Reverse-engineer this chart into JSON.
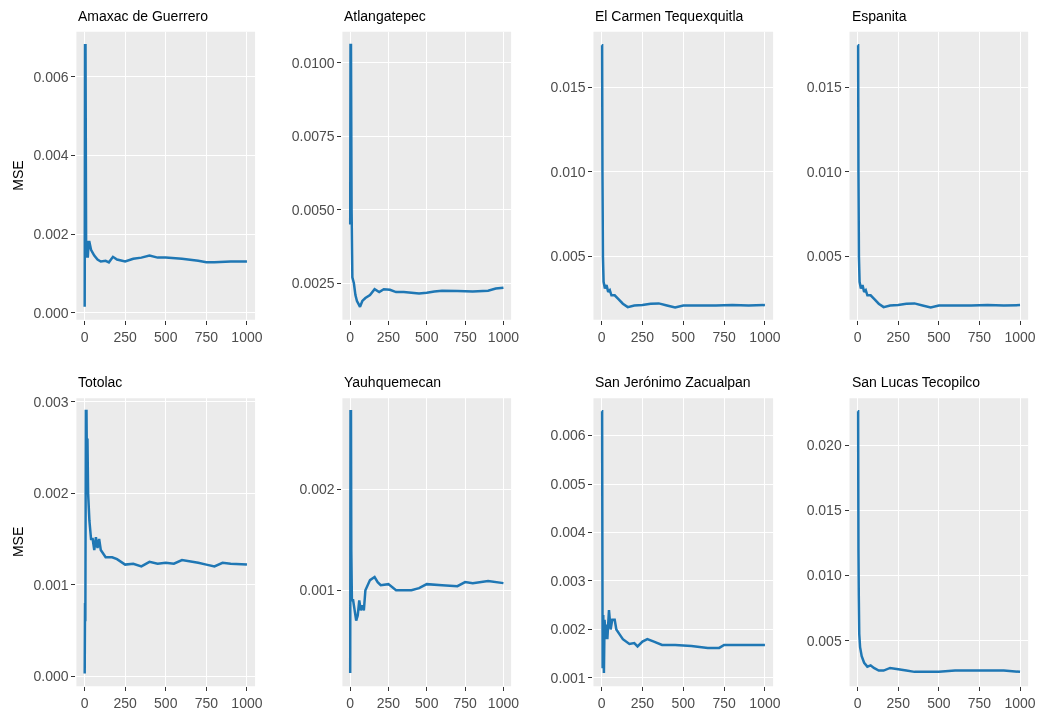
{
  "chart_data": [
    {
      "type": "line",
      "title": "Amaxac de Guerrero",
      "ylabel": "MSE",
      "grid": true,
      "xlim": [
        -50,
        1050
      ],
      "xticks": [
        0,
        250,
        500,
        750,
        1000
      ],
      "ylim": [
        -0.00018,
        0.00714
      ],
      "yticks": [
        {
          "value": 0,
          "label": "0.000"
        },
        {
          "value": 0.002,
          "label": "0.002"
        },
        {
          "value": 0.004,
          "label": "0.004"
        },
        {
          "value": 0.006,
          "label": "0.006"
        }
      ],
      "series": [
        {
          "color": "#1f77b4",
          "x": [
            1,
            3,
            6,
            10,
            15,
            20,
            25,
            30,
            40,
            60,
            80,
            100,
            130,
            150,
            175,
            200,
            250,
            300,
            350,
            400,
            450,
            500,
            600,
            700,
            750,
            800,
            900,
            1000
          ],
          "values": [
            0.00015,
            0.0068,
            0.0068,
            0.0014,
            0.0017,
            0.0014,
            0.0018,
            0.0018,
            0.0016,
            0.00145,
            0.00135,
            0.0013,
            0.00132,
            0.00128,
            0.00142,
            0.00135,
            0.0013,
            0.00137,
            0.0014,
            0.00145,
            0.0014,
            0.0014,
            0.00137,
            0.00132,
            0.00128,
            0.00128,
            0.0013,
            0.0013
          ]
        }
      ]
    },
    {
      "type": "line",
      "title": "Atlangatepec",
      "grid": true,
      "xlim": [
        -50,
        1050
      ],
      "xticks": [
        0,
        250,
        500,
        750,
        1000
      ],
      "ylim": [
        0.00126,
        0.01105
      ],
      "yticks": [
        {
          "value": 0.0025,
          "label": "0.0025"
        },
        {
          "value": 0.005,
          "label": "0.0050"
        },
        {
          "value": 0.0075,
          "label": "0.0075"
        },
        {
          "value": 0.01,
          "label": "0.0100"
        }
      ],
      "series": [
        {
          "color": "#1f77b4",
          "x": [
            1,
            3,
            6,
            10,
            15,
            25,
            35,
            45,
            55,
            65,
            80,
            100,
            130,
            160,
            190,
            220,
            260,
            300,
            350,
            400,
            450,
            500,
            550,
            600,
            700,
            800,
            900,
            950,
            1000
          ],
          "values": [
            0.0045,
            0.0106,
            0.0106,
            0.005,
            0.0027,
            0.0025,
            0.0021,
            0.0019,
            0.0018,
            0.0017,
            0.0019,
            0.002,
            0.0021,
            0.0023,
            0.0022,
            0.0023,
            0.00228,
            0.0022,
            0.0022,
            0.00218,
            0.00215,
            0.00218,
            0.00222,
            0.00225,
            0.00224,
            0.00222,
            0.00225,
            0.00232,
            0.00235
          ]
        }
      ]
    },
    {
      "type": "line",
      "title": "El Carmen Tequexquitla",
      "grid": true,
      "xlim": [
        -50,
        1050
      ],
      "xticks": [
        0,
        250,
        500,
        750,
        1000
      ],
      "ylim": [
        0.00125,
        0.0183
      ],
      "yticks": [
        {
          "value": 0.005,
          "label": "0.005"
        },
        {
          "value": 0.01,
          "label": "0.010"
        },
        {
          "value": 0.015,
          "label": "0.015"
        }
      ],
      "series": [
        {
          "color": "#1f77b4",
          "x": [
            1,
            3,
            5,
            8,
            12,
            20,
            30,
            40,
            50,
            60,
            80,
            100,
            130,
            160,
            200,
            250,
            300,
            350,
            400,
            450,
            500,
            600,
            700,
            800,
            900,
            1000
          ],
          "values": [
            0.0175,
            0.0175,
            0.01,
            0.005,
            0.0035,
            0.0031,
            0.0033,
            0.0029,
            0.003,
            0.0027,
            0.0027,
            0.0025,
            0.0022,
            0.002,
            0.0021,
            0.00212,
            0.0022,
            0.00222,
            0.0021,
            0.00198,
            0.0021,
            0.0021,
            0.0021,
            0.00212,
            0.0021,
            0.00212
          ]
        }
      ]
    },
    {
      "type": "line",
      "title": "Espanita",
      "grid": true,
      "xlim": [
        -50,
        1050
      ],
      "xticks": [
        0,
        250,
        500,
        750,
        1000
      ],
      "ylim": [
        0.00125,
        0.0183
      ],
      "yticks": [
        {
          "value": 0.005,
          "label": "0.005"
        },
        {
          "value": 0.01,
          "label": "0.010"
        },
        {
          "value": 0.015,
          "label": "0.015"
        }
      ],
      "series": [
        {
          "color": "#1f77b4",
          "x": [
            1,
            3,
            5,
            8,
            12,
            20,
            30,
            40,
            50,
            60,
            80,
            100,
            130,
            160,
            200,
            250,
            300,
            350,
            400,
            450,
            500,
            600,
            700,
            800,
            900,
            1000
          ],
          "values": [
            0.0175,
            0.0175,
            0.01,
            0.005,
            0.0035,
            0.0031,
            0.0033,
            0.0029,
            0.003,
            0.0027,
            0.0027,
            0.0025,
            0.0022,
            0.002,
            0.0021,
            0.00212,
            0.0022,
            0.00222,
            0.0021,
            0.00198,
            0.0021,
            0.0021,
            0.0021,
            0.00212,
            0.0021,
            0.00212
          ]
        }
      ]
    },
    {
      "type": "line",
      "title": "Totolac",
      "ylabel": "MSE",
      "grid": true,
      "xlim": [
        -50,
        1050
      ],
      "xticks": [
        0,
        250,
        500,
        750,
        1000
      ],
      "ylim": [
        -0.00011,
        0.00304
      ],
      "yticks": [
        {
          "value": 0,
          "label": "0.000"
        },
        {
          "value": 0.001,
          "label": "0.001"
        },
        {
          "value": 0.002,
          "label": "0.002"
        },
        {
          "value": 0.003,
          "label": "0.003"
        }
      ],
      "series": [
        {
          "color": "#1f77b4",
          "x": [
            1,
            3,
            5,
            8,
            12,
            15,
            18,
            22,
            30,
            40,
            50,
            60,
            70,
            80,
            90,
            100,
            130,
            170,
            200,
            250,
            300,
            350,
            400,
            450,
            500,
            550,
            600,
            700,
            750,
            800,
            850,
            900,
            1000
          ],
          "values": [
            3e-05,
            0.0008,
            0.0006,
            0.0029,
            0.0029,
            0.0022,
            0.0026,
            0.002,
            0.0017,
            0.0015,
            0.0015,
            0.00138,
            0.00152,
            0.0014,
            0.0015,
            0.00138,
            0.0013,
            0.0013,
            0.00128,
            0.00122,
            0.00123,
            0.0012,
            0.00125,
            0.00123,
            0.00124,
            0.00123,
            0.00127,
            0.00124,
            0.00122,
            0.0012,
            0.00124,
            0.00123,
            0.00122
          ]
        }
      ]
    },
    {
      "type": "line",
      "title": "Yauhquemecan",
      "grid": true,
      "xlim": [
        -50,
        1050
      ],
      "xticks": [
        0,
        250,
        500,
        750,
        1000
      ],
      "ylim": [
        5e-05,
        0.0029
      ],
      "yticks": [
        {
          "value": 0.001,
          "label": "0.001"
        },
        {
          "value": 0.002,
          "label": "0.002"
        }
      ],
      "series": [
        {
          "color": "#1f77b4",
          "x": [
            1,
            3,
            6,
            8,
            12,
            20,
            30,
            40,
            50,
            60,
            70,
            80,
            90,
            100,
            130,
            160,
            180,
            200,
            250,
            300,
            400,
            450,
            500,
            600,
            700,
            750,
            800,
            900,
            1000
          ],
          "values": [
            0.00018,
            0.00277,
            0.00277,
            0.0014,
            0.0009,
            0.0009,
            0.0008,
            0.0007,
            0.00075,
            0.0009,
            0.0008,
            0.00085,
            0.0008,
            0.001,
            0.0011,
            0.00113,
            0.00108,
            0.00105,
            0.00106,
            0.001,
            0.001,
            0.00102,
            0.00106,
            0.00105,
            0.00104,
            0.00108,
            0.00107,
            0.00109,
            0.00107
          ]
        }
      ]
    },
    {
      "type": "line",
      "title": "San Jerónimo Zacualpan",
      "grid": true,
      "xlim": [
        -50,
        1050
      ],
      "xticks": [
        0,
        250,
        500,
        750,
        1000
      ],
      "ylim": [
        0.00083,
        0.00677
      ],
      "yticks": [
        {
          "value": 0.001,
          "label": "0.001"
        },
        {
          "value": 0.002,
          "label": "0.002"
        },
        {
          "value": 0.003,
          "label": "0.003"
        },
        {
          "value": 0.004,
          "label": "0.004"
        },
        {
          "value": 0.005,
          "label": "0.005"
        },
        {
          "value": 0.006,
          "label": "0.006"
        }
      ],
      "series": [
        {
          "color": "#1f77b4",
          "x": [
            1,
            3,
            6,
            10,
            14,
            18,
            25,
            30,
            35,
            45,
            55,
            65,
            80,
            90,
            110,
            130,
            170,
            200,
            220,
            250,
            280,
            320,
            370,
            450,
            550,
            650,
            720,
            750,
            850,
            900,
            1000
          ],
          "values": [
            0.0065,
            0.0065,
            0.0012,
            0.0023,
            0.0011,
            0.0022,
            0.0018,
            0.0021,
            0.0018,
            0.0024,
            0.002,
            0.0022,
            0.0022,
            0.002,
            0.0019,
            0.0018,
            0.0017,
            0.00172,
            0.00165,
            0.00175,
            0.0018,
            0.00175,
            0.00168,
            0.00168,
            0.00166,
            0.00162,
            0.00162,
            0.00168,
            0.00168,
            0.00168,
            0.00168
          ]
        }
      ]
    },
    {
      "type": "line",
      "title": "San Lucas Tecopilco",
      "grid": true,
      "xlim": [
        -50,
        1050
      ],
      "xticks": [
        0,
        250,
        500,
        750,
        1000
      ],
      "ylim": [
        0.0015,
        0.0236
      ],
      "yticks": [
        {
          "value": 0.005,
          "label": "0.005"
        },
        {
          "value": 0.01,
          "label": "0.010"
        },
        {
          "value": 0.015,
          "label": "0.015"
        },
        {
          "value": 0.02,
          "label": "0.020"
        }
      ],
      "series": [
        {
          "color": "#1f77b4",
          "x": [
            1,
            3,
            5,
            7,
            10,
            15,
            25,
            40,
            60,
            80,
            100,
            130,
            160,
            200,
            250,
            300,
            350,
            400,
            500,
            600,
            700,
            800,
            900,
            1000
          ],
          "values": [
            0.0226,
            0.0226,
            0.012,
            0.0085,
            0.0055,
            0.0045,
            0.0038,
            0.0033,
            0.003,
            0.0031,
            0.0029,
            0.0027,
            0.0027,
            0.0029,
            0.0028,
            0.0027,
            0.0026,
            0.0026,
            0.0026,
            0.0027,
            0.0027,
            0.0027,
            0.0027,
            0.0026
          ]
        }
      ]
    }
  ]
}
